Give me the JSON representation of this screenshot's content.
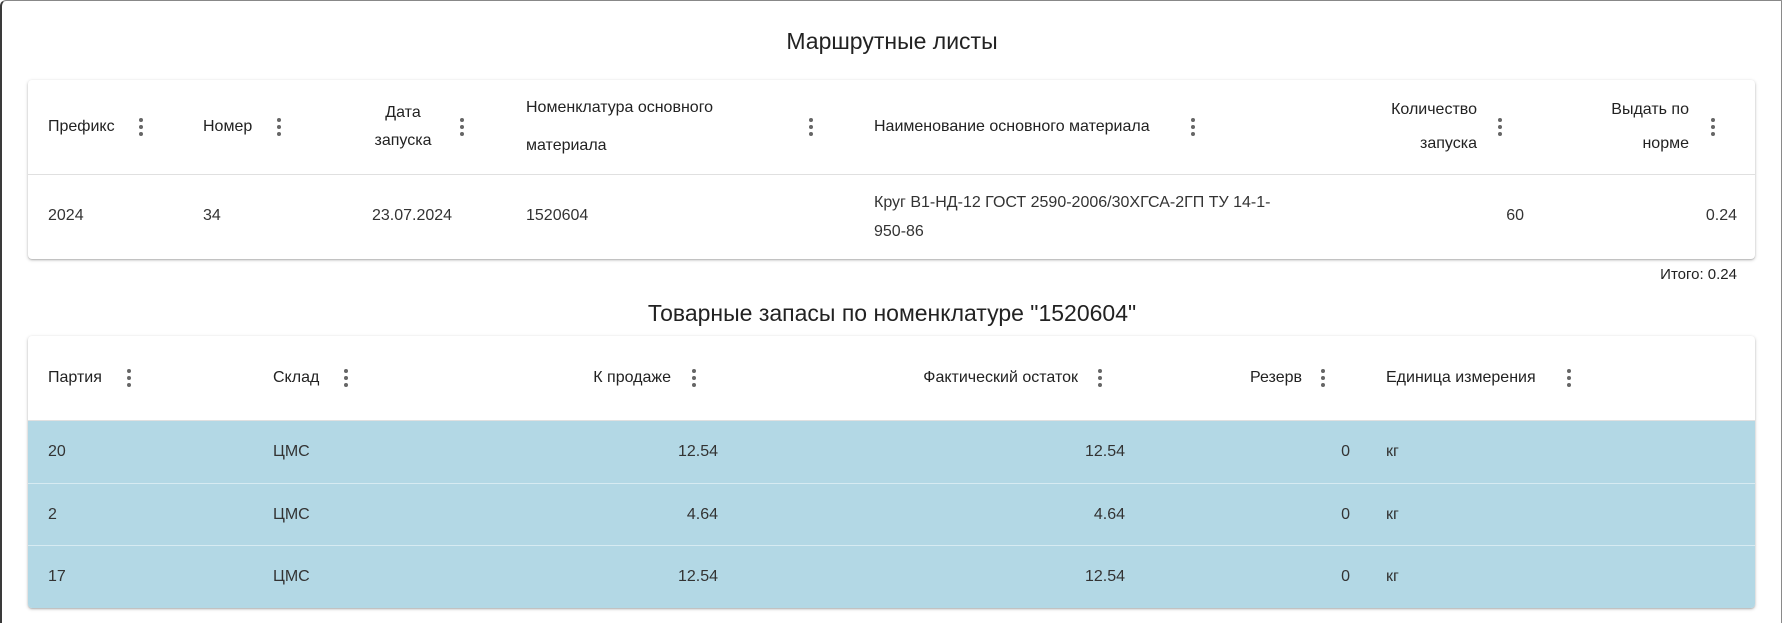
{
  "routes": {
    "title": "Маршрутные листы",
    "columns": [
      "Префикс",
      "Номер",
      "Дата запуска",
      "Номенклатура основного материала",
      "Наименование основного материала",
      "Количество запуска",
      "Выдать по норме"
    ],
    "column_lines": {
      "date": [
        "Дата",
        "запуска"
      ],
      "nomenclature": [
        "Номенклатура основного",
        "материала"
      ],
      "quantity": [
        "Количество",
        "запуска"
      ],
      "issue": [
        "Выдать по",
        "норме"
      ]
    },
    "rows": [
      {
        "prefix": "2024",
        "number": "34",
        "date": "23.07.2024",
        "nomenclature": "1520604",
        "name": "Круг В1-НД-12 ГОСТ 2590-2006/30ХГСА-2ГП ТУ 14-1-950-86",
        "name_lines": [
          "Круг В1-НД-12 ГОСТ 2590-2006/30ХГСА-2ГП ТУ 14-1-",
          "950-86"
        ],
        "quantity": "60",
        "issue": "0.24"
      }
    ],
    "total": "Итого: 0.24"
  },
  "stock": {
    "title": "Товарные запасы по номенклатуре \"1520604\"",
    "columns": [
      "Партия",
      "Склад",
      "К продаже",
      "Фактический остаток",
      "Резерв",
      "Единица измерения"
    ],
    "row_color": "#b3d8e5",
    "rows": [
      {
        "batch": "20",
        "warehouse": "ЦМС",
        "for_sale": "12.54",
        "actual": "12.54",
        "reserve": "0",
        "unit": "кг"
      },
      {
        "batch": "2",
        "warehouse": "ЦМС",
        "for_sale": "4.64",
        "actual": "4.64",
        "reserve": "0",
        "unit": "кг"
      },
      {
        "batch": "17",
        "warehouse": "ЦМС",
        "for_sale": "12.54",
        "actual": "12.54",
        "reserve": "0",
        "unit": "кг"
      }
    ]
  },
  "icons": {
    "column_menu": "more-vertical-icon"
  }
}
